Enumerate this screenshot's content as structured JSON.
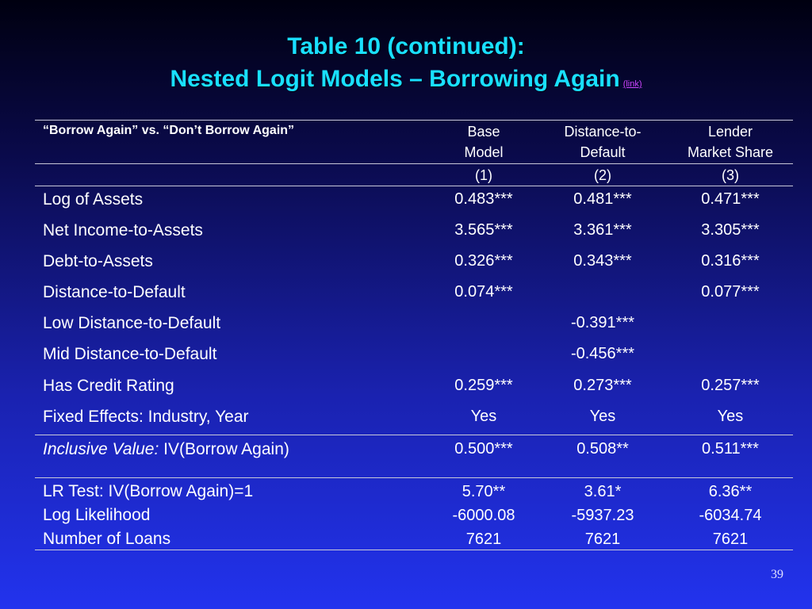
{
  "title": {
    "line1": "Table 10 (continued):",
    "line2": "Nested Logit Models – Borrowing Again",
    "link": "(link)"
  },
  "table": {
    "header_label": "“Borrow Again” vs. “Don’t Borrow Again”",
    "columns": [
      {
        "line1": "Base",
        "line2": "Model",
        "number": "(1)"
      },
      {
        "line1": "Distance-to-",
        "line2": "Default",
        "number": "(2)"
      },
      {
        "line1": "Lender",
        "line2": "Market Share",
        "number": "(3)"
      }
    ],
    "rows": [
      {
        "label": "Log of Assets",
        "values": [
          "0.483***",
          "0.481***",
          "0.471***"
        ]
      },
      {
        "label": "Net Income-to-Assets",
        "values": [
          "3.565***",
          "3.361***",
          "3.305***"
        ]
      },
      {
        "label": "Debt-to-Assets",
        "values": [
          "0.326***",
          "0.343***",
          "0.316***"
        ]
      },
      {
        "label": "Distance-to-Default",
        "values": [
          "0.074***",
          "",
          "0.077***"
        ]
      },
      {
        "label": "Low Distance-to-Default",
        "values": [
          "",
          "-0.391***",
          ""
        ]
      },
      {
        "label": "Mid Distance-to-Default",
        "values": [
          "",
          "-0.456***",
          ""
        ]
      },
      {
        "label": "Has Credit Rating",
        "values": [
          "0.259***",
          "0.273***",
          "0.257***"
        ]
      },
      {
        "label": "Fixed Effects: Industry, Year",
        "values": [
          "Yes",
          "Yes",
          "Yes"
        ]
      }
    ],
    "inclusive": {
      "label_italic": "Inclusive Value:",
      "label_rest": " IV(Borrow Again)",
      "values": [
        "0.500***",
        "0.508**",
        "0.511***"
      ]
    },
    "stats": {
      "labels": [
        "LR Test: IV(Borrow Again)=1",
        "Log Likelihood",
        "Number of Loans"
      ],
      "col1": [
        "5.70**",
        "-6000.08",
        "7621"
      ],
      "col2": [
        "3.61*",
        "-5937.23",
        "7621"
      ],
      "col3": [
        "6.36**",
        "-6034.74",
        "7621"
      ]
    }
  },
  "page_number": "39",
  "colors": {
    "title": "#19e0ff",
    "link": "#cc44ff",
    "text": "#ffffff",
    "background_top": "#000010",
    "background_bottom": "#2233ee"
  }
}
